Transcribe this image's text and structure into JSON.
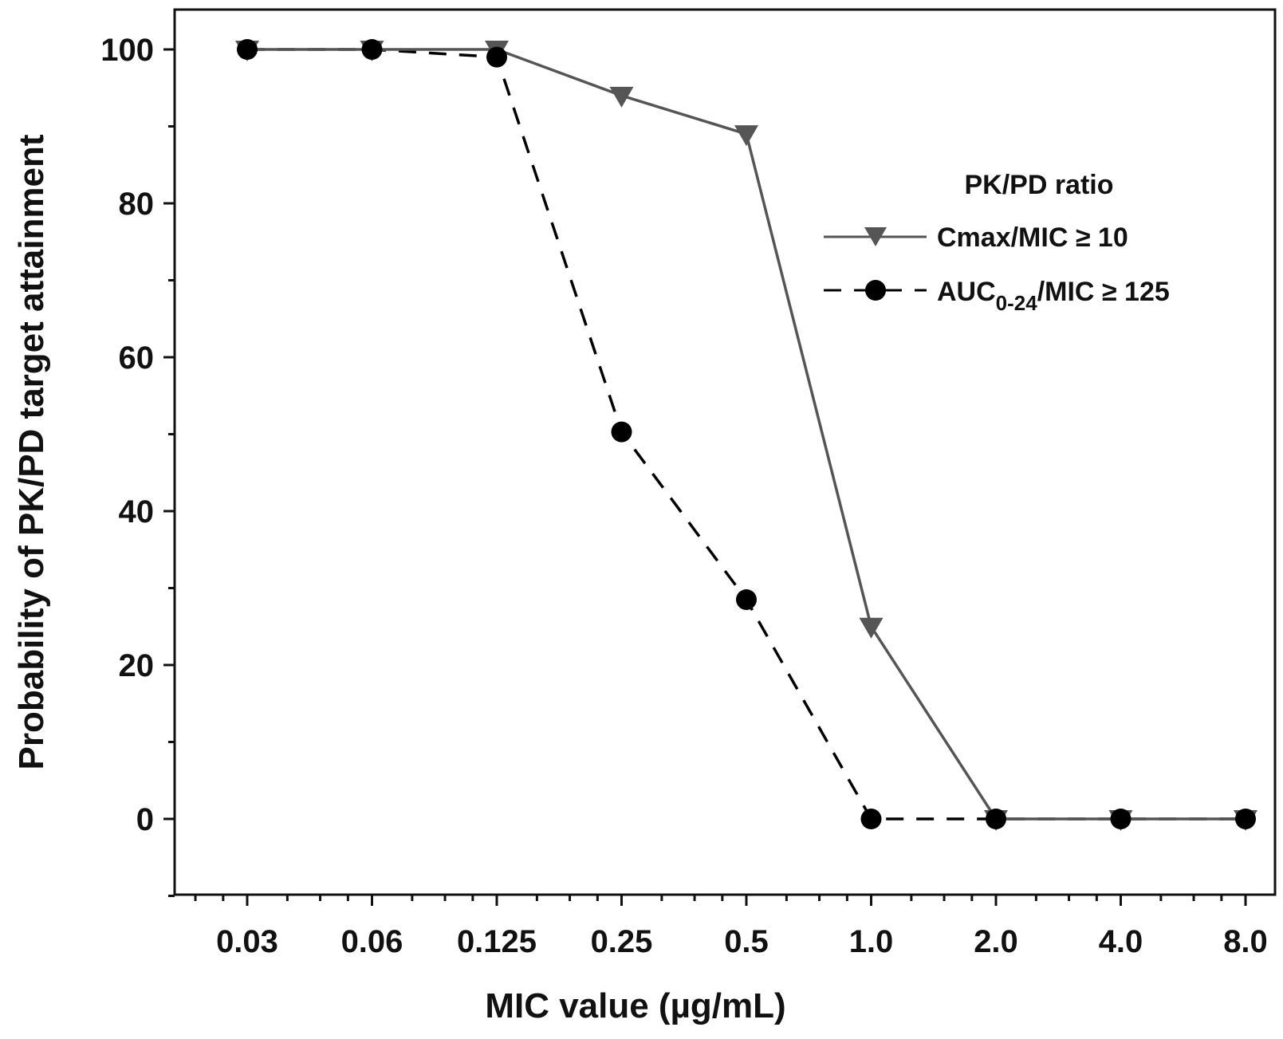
{
  "chart_data": {
    "type": "line",
    "title": "",
    "xlabel": "MIC value (µg/mL)",
    "ylabel": "Probability of PK/PD target attainment",
    "x_scale": "log2",
    "categories": [
      "0.03",
      "0.06",
      "0.125",
      "0.25",
      "0.5",
      "1.0",
      "2.0",
      "4.0",
      "8.0"
    ],
    "ylim": [
      -10,
      105
    ],
    "y_ticks": [
      0,
      20,
      40,
      60,
      80,
      100
    ],
    "y_tick_labels": [
      "0",
      "20",
      "40",
      "60",
      "80",
      "100"
    ],
    "grid": false,
    "legend": {
      "title": "PK/PD ratio",
      "position": "top-right"
    },
    "series": [
      {
        "name": "Cmax/MIC ≥ 10",
        "label_main": "Cmax/MIC ≥ 10",
        "line": "solid",
        "marker": "triangle-down",
        "color": "#555555",
        "values": [
          100,
          100,
          100,
          94,
          89,
          25,
          0,
          0,
          0
        ]
      },
      {
        "name": "AUC0-24/MIC ≥ 125",
        "label_main": "AUC",
        "label_sub": "0-24",
        "label_rest": "/MIC ≥ 125",
        "line": "dashed",
        "marker": "circle",
        "color": "#000000",
        "values": [
          100,
          100,
          99,
          50.3,
          28.5,
          0,
          0,
          0,
          0
        ]
      }
    ]
  }
}
